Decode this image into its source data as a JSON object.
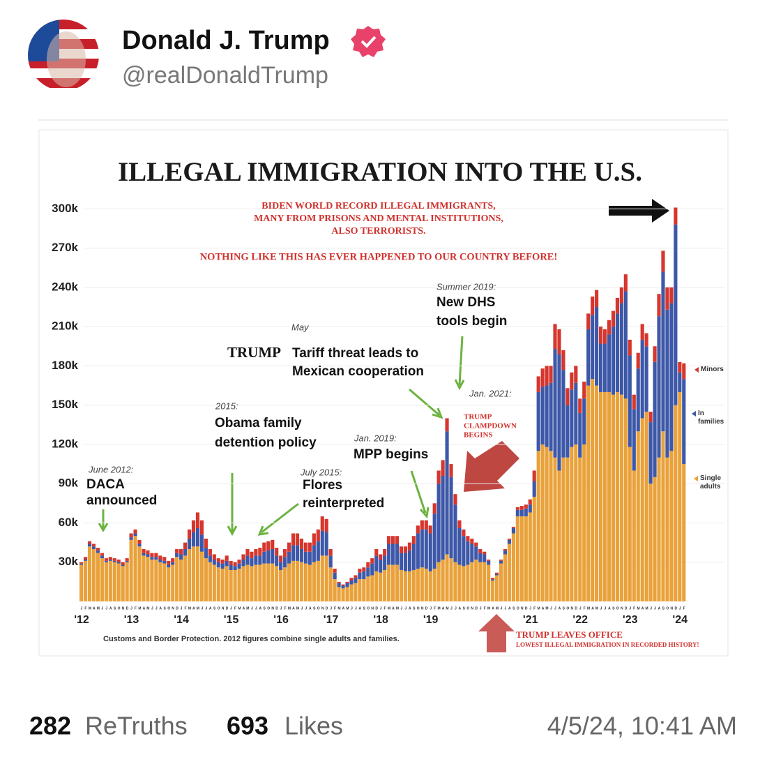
{
  "user": {
    "name": "Donald J. Trump",
    "handle": "@realDonaldTrump"
  },
  "stats": {
    "retruths": 282,
    "retruths_label": "ReTruths",
    "likes": 693,
    "likes_label": "Likes",
    "timestamp": "4/5/24, 10:41 AM"
  },
  "chart_data": {
    "type": "bar",
    "stacked": true,
    "title": "ILLEGAL IMMIGRATION INTO THE U.S.",
    "source": "Customs and Border Protection. 2012 figures combine single adults and families.",
    "categories": [
      "J",
      "F",
      "M",
      "A",
      "M",
      "J",
      "J",
      "A",
      "S",
      "O",
      "N",
      "D",
      "J",
      "F",
      "M",
      "A",
      "M",
      "J",
      "J",
      "A",
      "S",
      "O",
      "N",
      "D",
      "J",
      "F",
      "M",
      "A",
      "M",
      "J",
      "J",
      "A",
      "S",
      "O",
      "N",
      "D",
      "J",
      "F",
      "M",
      "A",
      "M",
      "J",
      "J",
      "A",
      "S",
      "O",
      "N",
      "D",
      "J",
      "F",
      "M",
      "A",
      "M",
      "J",
      "J",
      "A",
      "S",
      "O",
      "N",
      "D",
      "J",
      "F",
      "M",
      "A",
      "M",
      "J",
      "J",
      "A",
      "S",
      "O",
      "N",
      "D",
      "J",
      "F",
      "M",
      "A",
      "M",
      "J",
      "J",
      "A",
      "S",
      "O",
      "N",
      "D",
      "J",
      "F",
      "M",
      "A",
      "M",
      "J",
      "J",
      "A",
      "S",
      "O",
      "N",
      "D",
      "J",
      "F",
      "M",
      "A",
      "M",
      "J",
      "J",
      "A",
      "S",
      "O",
      "N",
      "D",
      "J",
      "F",
      "M",
      "A",
      "M",
      "J",
      "J",
      "A",
      "S",
      "O",
      "N",
      "D",
      "J",
      "F",
      "M",
      "A",
      "M",
      "J",
      "J",
      "A",
      "S",
      "O",
      "N",
      "D",
      "J",
      "F",
      "M",
      "A",
      "M",
      "J",
      "J",
      "A",
      "S",
      "O",
      "N",
      "D",
      "J",
      "F"
    ],
    "years": [
      "'12",
      "'13",
      "'14",
      "'15",
      "'16",
      "'17",
      "'18",
      "'19",
      null,
      "'21",
      "'22",
      "'23",
      "'24"
    ],
    "ylim": [
      0,
      305000
    ],
    "yticks": [
      {
        "value": 30000,
        "label": "30k"
      },
      {
        "value": 60000,
        "label": "60k"
      },
      {
        "value": 90000,
        "label": "90k"
      },
      {
        "value": 120000,
        "label": "120k"
      },
      {
        "value": 150000,
        "label": "150k"
      },
      {
        "value": 180000,
        "label": "180k"
      },
      {
        "value": 210000,
        "label": "210k"
      },
      {
        "value": 240000,
        "label": "240k"
      },
      {
        "value": 270000,
        "label": "270k"
      },
      {
        "value": 300000,
        "label": "300k"
      }
    ],
    "grid": true,
    "series": [
      {
        "name": "Single adults",
        "color": "#e9a23b",
        "values": [
          28000,
          31000,
          42000,
          40000,
          37000,
          33000,
          30000,
          31000,
          30000,
          29000,
          27000,
          30000,
          47000,
          50000,
          42000,
          35000,
          34000,
          32000,
          32000,
          30000,
          29000,
          26000,
          28000,
          34000,
          32000,
          35000,
          40000,
          42000,
          42000,
          38000,
          33000,
          30000,
          28000,
          26000,
          25000,
          27000,
          24000,
          24000,
          25000,
          27000,
          28000,
          27000,
          28000,
          28000,
          29000,
          29000,
          29000,
          27000,
          24000,
          26000,
          29000,
          31000,
          31000,
          30000,
          29000,
          28000,
          30000,
          31000,
          35000,
          35000,
          26000,
          17000,
          11000,
          10000,
          11000,
          13000,
          14000,
          17000,
          17000,
          19000,
          20000,
          23000,
          22000,
          24000,
          28000,
          28000,
          28000,
          24000,
          23000,
          23000,
          24000,
          25000,
          26000,
          25000,
          23000,
          25000,
          30000,
          32000,
          36000,
          33000,
          30000,
          28000,
          27000,
          28000,
          30000,
          32000,
          30000,
          30000,
          28000,
          16000,
          20000,
          29000,
          36000,
          44000,
          52000,
          65000,
          65000,
          65000,
          68000,
          80000,
          115000,
          120000,
          118000,
          115000,
          110000,
          100000,
          110000,
          110000,
          118000,
          120000,
          110000,
          120000,
          165000,
          170000,
          165000,
          160000,
          160000,
          160000,
          158000,
          160000,
          158000,
          155000,
          118000,
          100000,
          130000,
          140000,
          145000,
          90000,
          95000,
          110000,
          130000,
          110000,
          115000,
          150000,
          160000,
          105000
        ]
      },
      {
        "name": "In families",
        "color": "#3d58a8",
        "values": [
          1000,
          1000,
          2000,
          2000,
          2000,
          2000,
          1000,
          1000,
          1000,
          1000,
          1000,
          1000,
          2000,
          2000,
          2000,
          2000,
          2000,
          2000,
          2000,
          2000,
          2000,
          2000,
          2000,
          3000,
          4000,
          5000,
          8000,
          11000,
          14000,
          13000,
          8000,
          5000,
          4000,
          4000,
          4000,
          4000,
          4000,
          3000,
          4000,
          5000,
          7000,
          6000,
          7000,
          7000,
          9000,
          10000,
          11000,
          8000,
          6000,
          8000,
          9000,
          12000,
          12000,
          10000,
          9000,
          10000,
          13000,
          15000,
          19000,
          18000,
          9000,
          5000,
          3000,
          2000,
          3000,
          3000,
          4000,
          5000,
          6000,
          7000,
          9000,
          12000,
          10000,
          11000,
          16000,
          16000,
          16000,
          13000,
          14000,
          16000,
          20000,
          27000,
          29000,
          30000,
          29000,
          42000,
          60000,
          64000,
          94000,
          62000,
          44000,
          28000,
          23000,
          18000,
          14000,
          10000,
          7000,
          6000,
          3000,
          1000,
          1000,
          2000,
          3000,
          3000,
          4000,
          5000,
          5000,
          6000,
          6000,
          12000,
          45000,
          44000,
          47000,
          52000,
          83000,
          89000,
          67000,
          40000,
          44000,
          47000,
          34000,
          35000,
          43000,
          49000,
          60000,
          37000,
          37000,
          44000,
          52000,
          60000,
          70000,
          82000,
          70000,
          47000,
          48000,
          60000,
          50000,
          47000,
          88000,
          108000,
          122000,
          113000,
          113000,
          138000,
          15000,
          65000
        ]
      },
      {
        "name": "Minors",
        "color": "#d6362d",
        "values": [
          1000,
          2000,
          2000,
          2000,
          2000,
          2000,
          2000,
          2000,
          2000,
          2000,
          2000,
          2000,
          3000,
          3000,
          3000,
          3000,
          3000,
          3000,
          3000,
          3000,
          3000,
          3000,
          3000,
          3000,
          4000,
          5000,
          7000,
          9000,
          12000,
          11000,
          7000,
          5000,
          4000,
          3000,
          3000,
          4000,
          3000,
          3000,
          3000,
          4000,
          5000,
          5000,
          5000,
          6000,
          7000,
          7000,
          7000,
          6000,
          5000,
          6000,
          7000,
          9000,
          9000,
          8000,
          7000,
          7000,
          9000,
          9000,
          11000,
          10000,
          5000,
          3000,
          1000,
          1000,
          1000,
          2000,
          2000,
          3000,
          3000,
          4000,
          4000,
          5000,
          4000,
          5000,
          6000,
          6000,
          6000,
          5000,
          5000,
          6000,
          6000,
          6000,
          7000,
          7000,
          6000,
          8000,
          10000,
          12000,
          10000,
          10000,
          8000,
          6000,
          5000,
          4000,
          4000,
          3000,
          3000,
          2000,
          1000,
          1000,
          1000,
          1000,
          1000,
          1000,
          1000,
          2000,
          3000,
          3000,
          4000,
          8000,
          12000,
          14000,
          15000,
          13000,
          19000,
          19000,
          15000,
          13000,
          13000,
          13000,
          11000,
          13000,
          12000,
          14000,
          13000,
          13000,
          11000,
          11000,
          12000,
          12000,
          12000,
          13000,
          12000,
          11000,
          12000,
          12000,
          10000,
          8000,
          12000,
          17000,
          16000,
          17000,
          12000,
          13000,
          8000,
          12000
        ]
      }
    ],
    "annotations": [
      {
        "lines": [
          "BIDEN WORLD RECORD ILLEGAL IMMIGRANTS,",
          "MANY FROM PRISONS AND MENTAL INSTITUTIONS,",
          "ALSO TERRORISTS."
        ]
      },
      {
        "lines": [
          "NOTHING LIKE THIS HAS EVER HAPPENED TO OUR COUNTRY BEFORE!"
        ]
      },
      {
        "lines": [
          "Summer 2019:"
        ]
      },
      {
        "lines": [
          "New DHS",
          "tools begin"
        ]
      },
      {
        "lines": [
          "May"
        ]
      },
      {
        "lines": [
          "TRUMP"
        ]
      },
      {
        "lines": [
          "Tariff threat leads to",
          "Mexican cooperation"
        ]
      },
      {
        "lines": [
          "Jan. 2021:"
        ]
      },
      {
        "lines": [
          "TRUMP",
          "CLAMPDOWN",
          "BEGINS"
        ]
      },
      {
        "lines": [
          "2015:"
        ]
      },
      {
        "lines": [
          "Obama family",
          "detention policy"
        ]
      },
      {
        "lines": [
          "Jan. 2019:"
        ]
      },
      {
        "lines": [
          "MPP begins"
        ]
      },
      {
        "lines": [
          "June 2012:"
        ]
      },
      {
        "lines": [
          "DACA",
          "announced"
        ]
      },
      {
        "lines": [
          "July 2015:"
        ]
      },
      {
        "lines": [
          "Flores",
          "reinterpreted"
        ]
      },
      {
        "lines": [
          "TRUMP LEAVES OFFICE"
        ]
      },
      {
        "lines": [
          "LOWEST ILLEGAL IMMIGRATION IN RECORDED HISTORY!"
        ]
      }
    ]
  }
}
